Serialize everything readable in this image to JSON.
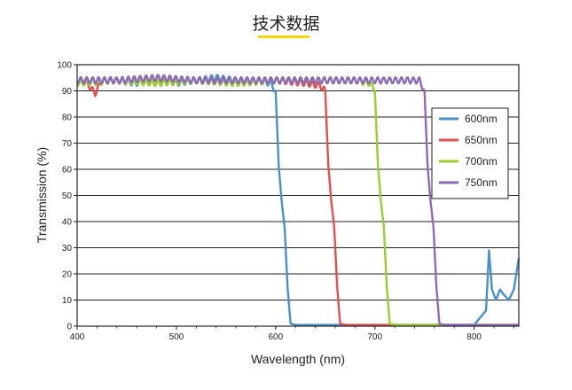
{
  "page": {
    "title": "技术数据"
  },
  "chart_data": {
    "type": "line",
    "xlabel": "Wavelength (nm)",
    "ylabel": "Transmission (%)",
    "xlim": [
      400,
      845
    ],
    "ylim": [
      0,
      100
    ],
    "x_ticks": [
      400,
      500,
      600,
      700,
      800
    ],
    "y_ticks": [
      0,
      10,
      20,
      30,
      40,
      50,
      60,
      70,
      80,
      90,
      100
    ],
    "grid": "horizontal",
    "legend_position": "right",
    "series": [
      {
        "name": "600nm",
        "color": "#4a90c8",
        "x": [
          400,
          420,
          440,
          460,
          480,
          500,
          520,
          540,
          560,
          580,
          595,
          600,
          603,
          606,
          609,
          612,
          615,
          620,
          640,
          660,
          700,
          750,
          800,
          812,
          815,
          818,
          822,
          826,
          830,
          835,
          840,
          845
        ],
        "y": [
          94,
          94,
          94,
          93,
          95,
          93,
          94,
          95,
          94,
          94,
          93,
          90,
          62,
          48,
          38,
          15,
          1,
          0.5,
          0.5,
          0.5,
          0.5,
          0.5,
          0.5,
          6,
          29,
          14,
          10,
          14,
          12,
          10,
          14,
          26
        ]
      },
      {
        "name": "650nm",
        "color": "#e05050",
        "x": [
          400,
          410,
          418,
          425,
          440,
          480,
          520,
          560,
          600,
          630,
          645,
          650,
          653,
          656,
          659,
          662,
          665,
          670,
          700,
          750,
          800,
          845
        ],
        "y": [
          94,
          93,
          89,
          94,
          94,
          93,
          94,
          93,
          94,
          93,
          92,
          90,
          62,
          48,
          38,
          15,
          1,
          0.5,
          0.5,
          0.5,
          0.5,
          0.5
        ]
      },
      {
        "name": "700nm",
        "color": "#9acd32",
        "x": [
          400,
          440,
          480,
          520,
          560,
          600,
          640,
          680,
          695,
          700,
          703,
          706,
          709,
          712,
          715,
          720,
          760,
          800,
          845
        ],
        "y": [
          93,
          94,
          93,
          94,
          93,
          94,
          94,
          94,
          93,
          90,
          62,
          48,
          38,
          15,
          1,
          0.5,
          0.5,
          0.5,
          0.5
        ]
      },
      {
        "name": "750nm",
        "color": "#8b6bb8",
        "x": [
          400,
          440,
          480,
          520,
          560,
          600,
          640,
          680,
          720,
          740,
          745,
          750,
          753,
          756,
          759,
          762,
          765,
          770,
          800,
          845
        ],
        "y": [
          94,
          94,
          95,
          94,
          94,
          94,
          94,
          94,
          94,
          94,
          94,
          90,
          62,
          48,
          38,
          15,
          1,
          0.5,
          0.5,
          0.5
        ]
      }
    ]
  }
}
